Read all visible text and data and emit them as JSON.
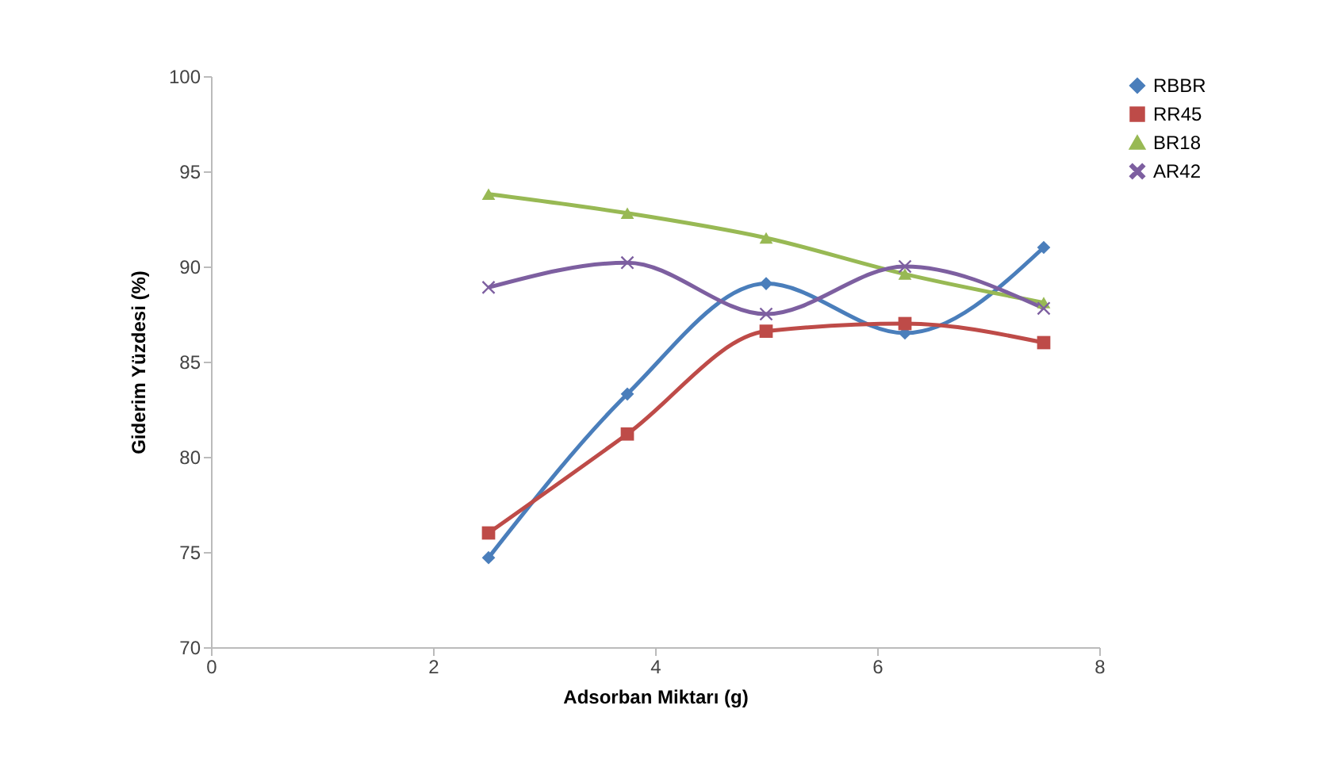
{
  "chart_data": {
    "type": "line",
    "xlabel": "Adsorban Miktarı (g)",
    "ylabel": "Giderim Yüzdesi (%)",
    "x": [
      2.5,
      3.75,
      5,
      6.25,
      7.5
    ],
    "xlim": [
      0,
      8
    ],
    "xticks": [
      0,
      2,
      4,
      6,
      8
    ],
    "ylim": [
      70,
      100
    ],
    "yticks": [
      70,
      75,
      80,
      85,
      90,
      95,
      100
    ],
    "grid": false,
    "legend": "right",
    "line_style": "solid",
    "series": [
      {
        "name": "RBBR",
        "color": "#4a7ebb",
        "marker": "diamond",
        "values": [
          74.7,
          83.3,
          89.1,
          86.5,
          91.0
        ]
      },
      {
        "name": "RR45",
        "color": "#be4b48",
        "marker": "square",
        "values": [
          76.0,
          81.2,
          86.6,
          87.0,
          86.0
        ]
      },
      {
        "name": "BR18",
        "color": "#98b954",
        "marker": "triangle",
        "values": [
          93.8,
          92.8,
          91.5,
          89.6,
          88.1
        ]
      },
      {
        "name": "AR42",
        "color": "#7d5fa0",
        "marker": "cross",
        "values": [
          88.9,
          90.2,
          87.5,
          90.0,
          87.8
        ]
      }
    ]
  }
}
